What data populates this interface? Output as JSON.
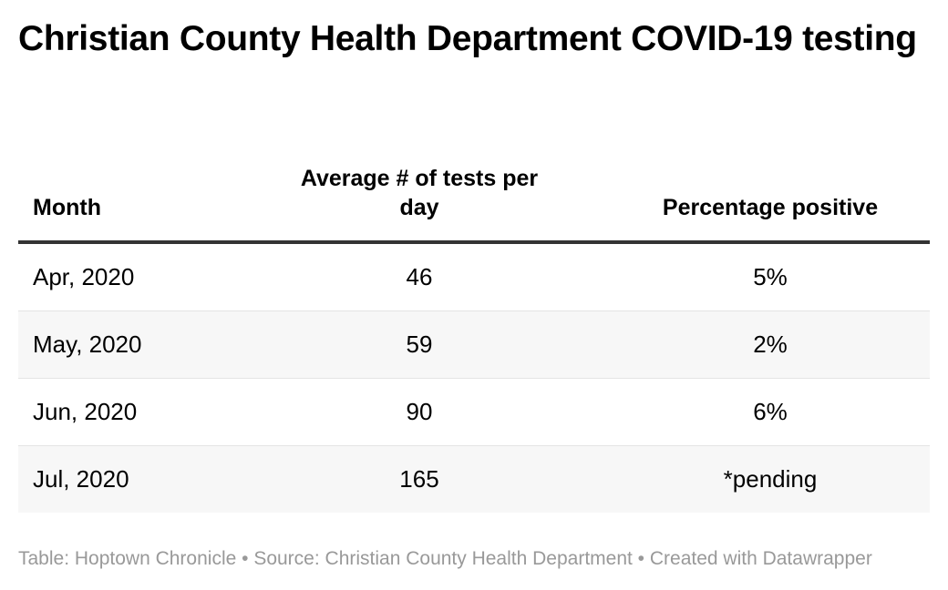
{
  "title": "Christian County Health Department COVID-19 testing",
  "chart_data": {
    "type": "table",
    "columns": [
      "Month",
      "Average # of tests per day",
      "Percentage positive"
    ],
    "rows": [
      {
        "month": "Apr, 2020",
        "tests": "46",
        "positive": "5%"
      },
      {
        "month": "May, 2020",
        "tests": "59",
        "positive": "2%"
      },
      {
        "month": "Jun, 2020",
        "tests": "90",
        "positive": "6%"
      },
      {
        "month": "Jul, 2020",
        "tests": "165",
        "positive": "*pending"
      }
    ]
  },
  "footer": "Table: Hoptown Chronicle • Source: Christian County Health Department • Created with Datawrapper",
  "colors": {
    "header_rule": "#333333",
    "row_alt": "#f7f7f7",
    "row_divider": "#e4e4e4",
    "footer_text": "#999999"
  }
}
